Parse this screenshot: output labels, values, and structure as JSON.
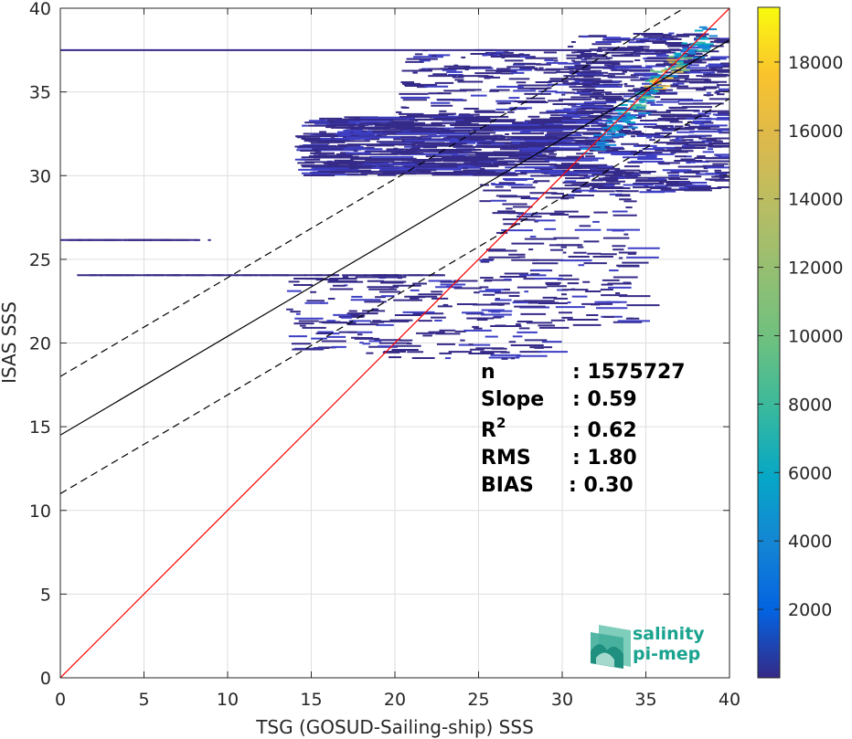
{
  "chart_data": {
    "type": "heatmap",
    "title": "",
    "xlabel": "TSG (GOSUD-Sailing-ship) SSS",
    "ylabel": "ISAS SSS",
    "xlim": [
      0,
      40
    ],
    "ylim": [
      0,
      40
    ],
    "x_ticks": [
      "0",
      "5",
      "10",
      "15",
      "20",
      "25",
      "30",
      "35",
      "40"
    ],
    "y_ticks": [
      "0",
      "5",
      "10",
      "15",
      "20",
      "25",
      "30",
      "35",
      "40"
    ],
    "grid": true,
    "colormap": "parula",
    "colorbar": {
      "range": [
        0,
        19600
      ],
      "ticks": [
        "2000",
        "4000",
        "6000",
        "8000",
        "10000",
        "12000",
        "14000",
        "16000",
        "18000"
      ],
      "tick_values": [
        2000,
        4000,
        6000,
        8000,
        10000,
        12000,
        14000,
        16000,
        18000
      ]
    },
    "lines": [
      {
        "role": "one-to-one",
        "color": "#ff0000",
        "style": "solid",
        "points": [
          [
            0,
            0
          ],
          [
            40,
            40
          ]
        ]
      },
      {
        "role": "regression",
        "color": "#000000",
        "style": "solid",
        "slope": 0.59,
        "intercept": 14.5
      },
      {
        "role": "regression-plus-2rms",
        "color": "#000000",
        "style": "dashed",
        "slope": 0.59,
        "intercept": 18.0
      },
      {
        "role": "regression-minus-2rms",
        "color": "#000000",
        "style": "dashed",
        "slope": 0.59,
        "intercept": 11.0
      }
    ],
    "stats": [
      {
        "label": "n",
        "value": ": 1575727"
      },
      {
        "label": "Slope",
        "value": ": 0.59"
      },
      {
        "label": "R",
        "sup": "2",
        "value": ": 0.62"
      },
      {
        "label": "RMS",
        "value": ": 1.80"
      },
      {
        "label": "BIAS",
        "value": ": 0.30"
      }
    ],
    "density_clusters": [
      {
        "x": [
          30,
          39.5
        ],
        "y": [
          29,
          38.5
        ],
        "density": "high"
      },
      {
        "x": [
          14,
          30
        ],
        "y": [
          30,
          33.5
        ],
        "density": "medium"
      },
      {
        "x": [
          20,
          32
        ],
        "y": [
          33.5,
          37.5
        ],
        "density": "low"
      },
      {
        "x": [
          25,
          34
        ],
        "y": [
          21,
          30
        ],
        "density": "low"
      },
      {
        "x": [
          13.5,
          29
        ],
        "y": [
          19,
          24
        ],
        "density": "low"
      },
      {
        "x": [
          0,
          38
        ],
        "y": [
          37.4,
          37.6
        ],
        "density": "line"
      },
      {
        "x": [
          1,
          23
        ],
        "y": [
          23.9,
          24.2
        ],
        "density": "line"
      },
      {
        "x": [
          0,
          9
        ],
        "y": [
          26.0,
          26.3
        ],
        "density": "line"
      }
    ]
  },
  "logo": {
    "line1": "salinity",
    "line2": "pi-mep",
    "color": "#1aa38f"
  }
}
